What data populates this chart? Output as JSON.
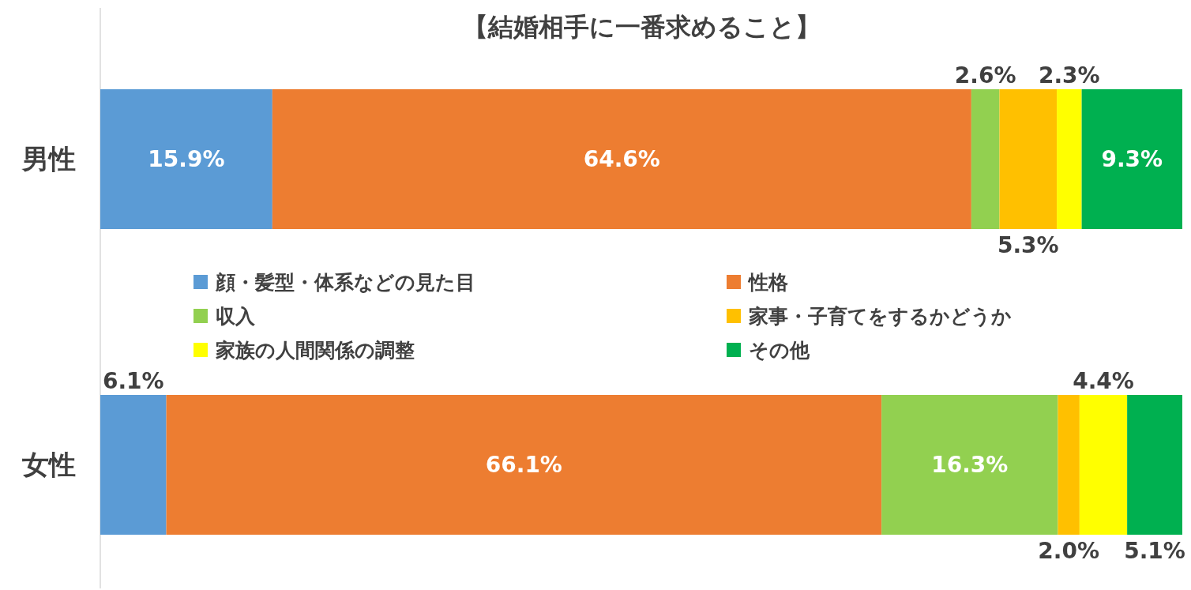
{
  "chart_data": {
    "type": "bar",
    "title": "【結婚相手に一番求めること】",
    "orientation": "horizontal",
    "stacked": true,
    "categories": [
      "男性",
      "女性"
    ],
    "series": [
      {
        "name": "顔・髪型・体系などの見た目",
        "color": "#5b9bd5",
        "values": [
          15.9,
          6.1
        ],
        "value_labels": [
          "15.9%",
          "6.1%"
        ]
      },
      {
        "name": "性格",
        "color": "#ed7d31",
        "values": [
          64.6,
          66.1
        ],
        "value_labels": [
          "64.6%",
          "66.1%"
        ]
      },
      {
        "name": "収入",
        "color": "#92d050",
        "values": [
          2.6,
          16.3
        ],
        "value_labels": [
          "2.6%",
          "16.3%"
        ]
      },
      {
        "name": "家事・子育てをするかどうか",
        "color": "#ffc000",
        "values": [
          5.3,
          2.0
        ],
        "value_labels": [
          "5.3%",
          "2.0%"
        ]
      },
      {
        "name": "家族の人間関係の調整",
        "color": "#ffff00",
        "values": [
          2.3,
          4.4
        ],
        "value_labels": [
          "2.3%",
          "4.4%"
        ]
      },
      {
        "name": "その他",
        "color": "#00b050",
        "values": [
          9.3,
          5.1
        ],
        "value_labels": [
          "9.3%",
          "5.1%"
        ]
      }
    ],
    "legend": "center",
    "tick_labels": "y"
  }
}
